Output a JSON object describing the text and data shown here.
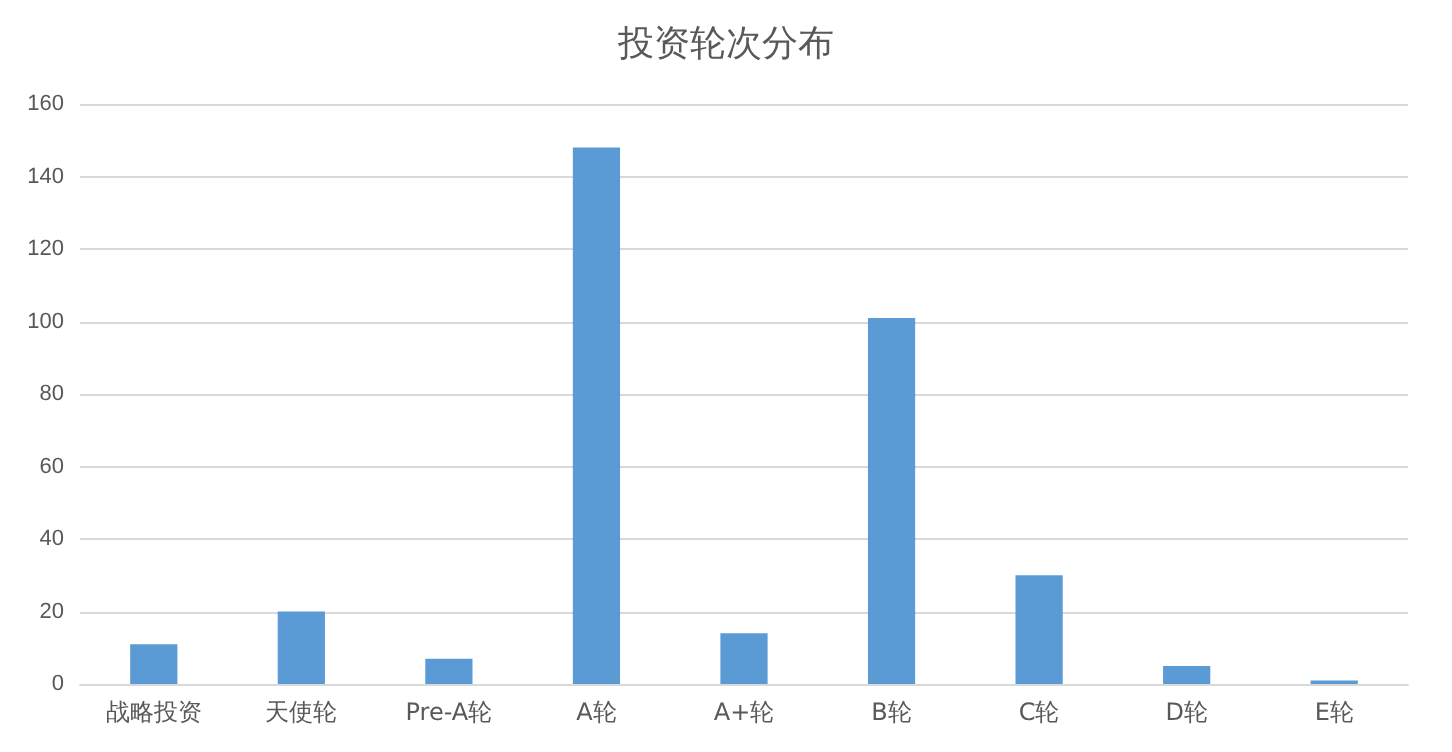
{
  "chart_data": {
    "type": "bar",
    "title": "投资轮次分布",
    "categories": [
      "战略投资",
      "天使轮",
      "Pre-A轮",
      "A轮",
      "A+轮",
      "B轮",
      "C轮",
      "D轮",
      "E轮"
    ],
    "values": [
      11,
      20,
      7,
      148,
      14,
      101,
      30,
      5,
      1
    ],
    "color": "#5b9bd5",
    "ylim": [
      0,
      160
    ],
    "yticks": [
      0,
      20,
      40,
      60,
      80,
      100,
      120,
      140,
      160
    ],
    "grid": "y"
  }
}
